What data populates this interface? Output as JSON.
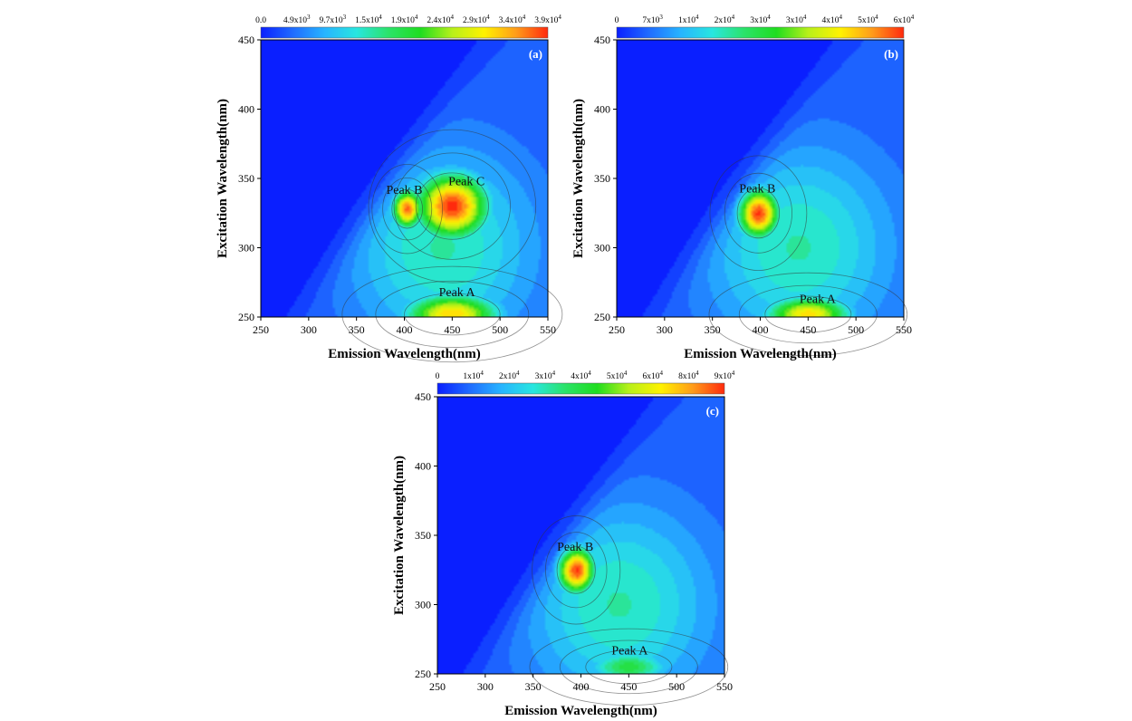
{
  "figure": {
    "colormap": [
      "#0a1fff",
      "#1f6bff",
      "#27b4ff",
      "#28e6e0",
      "#2be36a",
      "#1fdd1f",
      "#b8f01a",
      "#fff200",
      "#ff9c1a",
      "#ff2a0d"
    ]
  },
  "chart_data": [
    {
      "type": "heatmap",
      "panel_label": "(a)",
      "xlabel": "Emission Wavelength(nm)",
      "ylabel": "Excitation Wavelength(nm)",
      "xlim": [
        250,
        550
      ],
      "ylim": [
        250,
        450
      ],
      "xticks": [
        "250",
        "300",
        "350",
        "400",
        "450",
        "500",
        "550"
      ],
      "yticks": [
        "250",
        "300",
        "350",
        "400",
        "450"
      ],
      "colorbar": {
        "min": 0,
        "max": 39000,
        "ticks": [
          {
            "base": "0.0",
            "exp": ""
          },
          {
            "base": "4.9x10",
            "exp": "3"
          },
          {
            "base": "9.7x10",
            "exp": "3"
          },
          {
            "base": "1.5x10",
            "exp": "4"
          },
          {
            "base": "1.9x10",
            "exp": "4"
          },
          {
            "base": "2.4x10",
            "exp": "4"
          },
          {
            "base": "2.9x10",
            "exp": "4"
          },
          {
            "base": "3.4x10",
            "exp": "4"
          },
          {
            "base": "3.9x10",
            "exp": "4"
          }
        ]
      },
      "peaks": [
        {
          "label": "Peak B",
          "em": 403,
          "ex": 328,
          "label_em": 400,
          "label_ex": 339,
          "intensity": 0.95,
          "sigma_em": 16,
          "sigma_ex": 14
        },
        {
          "label": "Peak C",
          "em": 450,
          "ex": 330,
          "label_em": 465,
          "label_ex": 345,
          "intensity": 1.0,
          "sigma_em": 38,
          "sigma_ex": 24
        },
        {
          "label": "Peak A",
          "em": 450,
          "ex": 252,
          "label_em": 455,
          "label_ex": 265,
          "intensity": 0.82,
          "sigma_em": 50,
          "sigma_ex": 15
        }
      ]
    },
    {
      "type": "heatmap",
      "panel_label": "(b)",
      "xlabel": "Emission Wavelength(nm)",
      "ylabel": "Excitation Wavelength(nm)",
      "xlim": [
        250,
        550
      ],
      "ylim": [
        250,
        450
      ],
      "xticks": [
        "250",
        "300",
        "350",
        "400",
        "450",
        "500",
        "550"
      ],
      "yticks": [
        "250",
        "300",
        "350",
        "400",
        "450"
      ],
      "colorbar": {
        "min": 0,
        "max": 60000,
        "ticks": [
          {
            "base": "0",
            "exp": ""
          },
          {
            "base": "7x10",
            "exp": "3"
          },
          {
            "base": "1x10",
            "exp": "4"
          },
          {
            "base": "2x10",
            "exp": "4"
          },
          {
            "base": "3x10",
            "exp": "4"
          },
          {
            "base": "3x10",
            "exp": "4"
          },
          {
            "base": "4x10",
            "exp": "4"
          },
          {
            "base": "5x10",
            "exp": "4"
          },
          {
            "base": "6x10",
            "exp": "4"
          }
        ]
      },
      "peaks": [
        {
          "label": "Peak B",
          "em": 398,
          "ex": 325,
          "label_em": 397,
          "label_ex": 340,
          "intensity": 1.0,
          "sigma_em": 22,
          "sigma_ex": 18
        },
        {
          "label": "Peak A",
          "em": 450,
          "ex": 252,
          "label_em": 460,
          "label_ex": 260,
          "intensity": 0.8,
          "sigma_em": 45,
          "sigma_ex": 13
        }
      ]
    },
    {
      "type": "heatmap",
      "panel_label": "(c)",
      "xlabel": "Emission Wavelength(nm)",
      "ylabel": "Excitation Wavelength(nm)",
      "xlim": [
        250,
        550
      ],
      "ylim": [
        250,
        450
      ],
      "xticks": [
        "250",
        "300",
        "350",
        "400",
        "450",
        "500",
        "550"
      ],
      "yticks": [
        "250",
        "300",
        "350",
        "400",
        "450"
      ],
      "colorbar": {
        "min": 0,
        "max": 90000,
        "ticks": [
          {
            "base": "0",
            "exp": ""
          },
          {
            "base": "1x10",
            "exp": "4"
          },
          {
            "base": "2x10",
            "exp": "4"
          },
          {
            "base": "3x10",
            "exp": "4"
          },
          {
            "base": "4x10",
            "exp": "4"
          },
          {
            "base": "5x10",
            "exp": "4"
          },
          {
            "base": "6x10",
            "exp": "4"
          },
          {
            "base": "8x10",
            "exp": "4"
          },
          {
            "base": "9x10",
            "exp": "4"
          }
        ]
      },
      "peaks": [
        {
          "label": "Peak B",
          "em": 395,
          "ex": 325,
          "label_em": 394,
          "label_ex": 339,
          "intensity": 1.0,
          "sigma_em": 20,
          "sigma_ex": 17
        },
        {
          "label": "Peak A",
          "em": 450,
          "ex": 255,
          "label_em": 451,
          "label_ex": 264,
          "intensity": 0.5,
          "sigma_em": 45,
          "sigma_ex": 12
        }
      ]
    }
  ]
}
